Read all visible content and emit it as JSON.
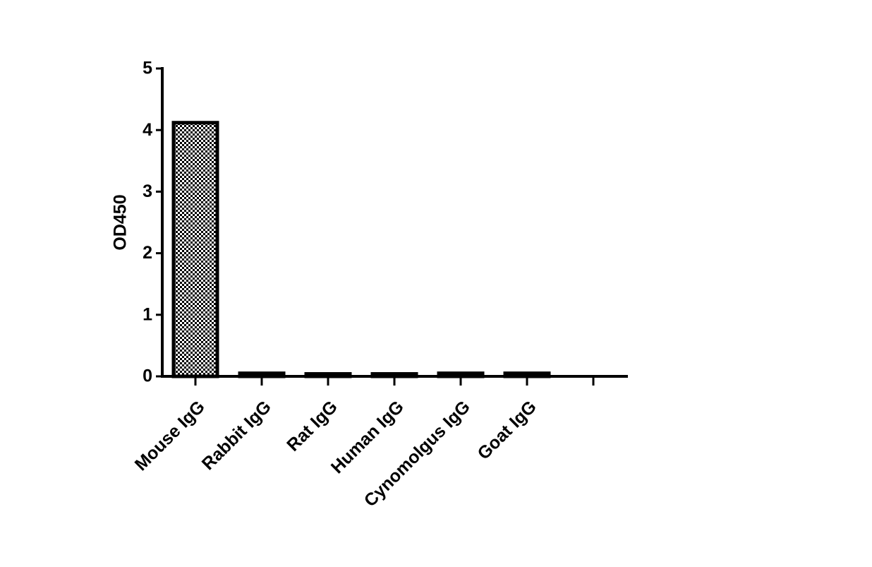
{
  "chart_data": {
    "type": "bar",
    "y_label": "OD450",
    "categories": [
      "Mouse IgG",
      "Rabbit IgG",
      "Rat IgG",
      "Human IgG",
      "Cynomolgus IgG",
      "Goat IgG",
      null
    ],
    "values": [
      4.12,
      0.05,
      0.04,
      0.04,
      0.05,
      0.05,
      null
    ],
    "color": "#000000",
    "ylim": [
      0,
      5
    ],
    "yticks": [
      0,
      1,
      2,
      3,
      4,
      5
    ],
    "grid": false
  }
}
